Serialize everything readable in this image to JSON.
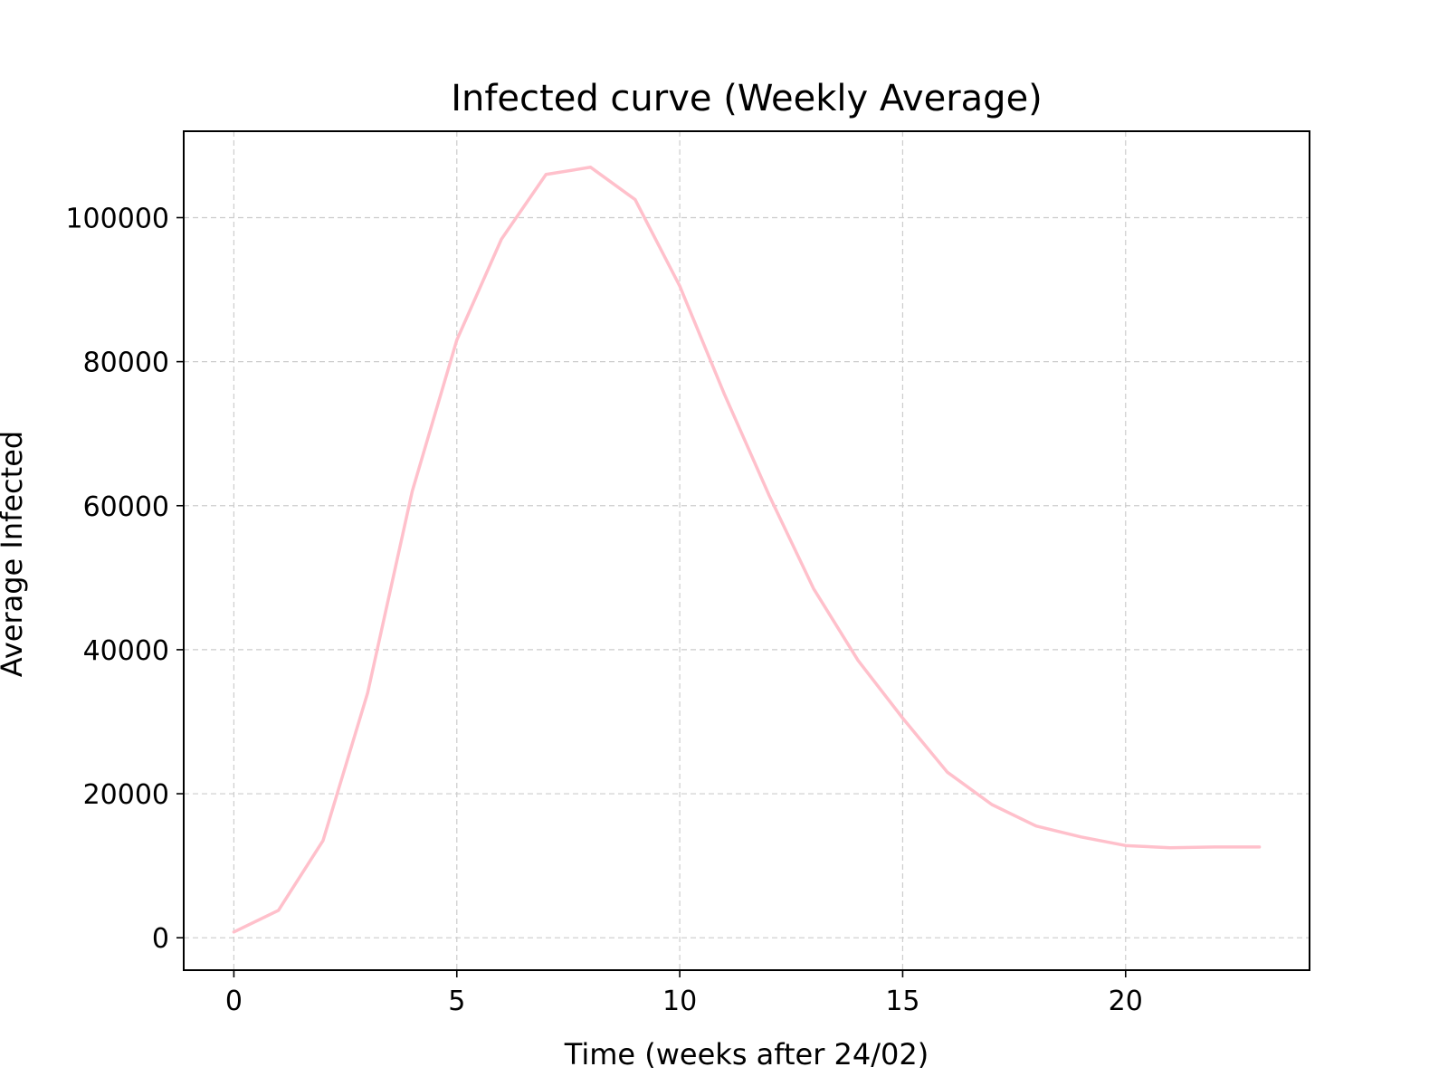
{
  "chart_data": {
    "type": "line",
    "title": "Infected curve (Weekly Average)",
    "xlabel": "Time (weeks after 24/02)",
    "ylabel": "Average Infected",
    "xlim": [
      -1.125,
      24.125
    ],
    "ylim": [
      -4500,
      112000
    ],
    "xticks": [
      0,
      5,
      10,
      15,
      20
    ],
    "yticks": [
      0,
      20000,
      40000,
      60000,
      80000,
      100000
    ],
    "grid": true,
    "series": [
      {
        "color": "#ffc0cb",
        "x": [
          0,
          1,
          2,
          3,
          4,
          5,
          6,
          7,
          8,
          9,
          10,
          11,
          12,
          13,
          14,
          15,
          16,
          17,
          18,
          19,
          20,
          21,
          22,
          23
        ],
        "y": [
          800,
          3800,
          13500,
          34000,
          62000,
          83000,
          97000,
          106000,
          107000,
          102500,
          90500,
          75500,
          61500,
          48500,
          38500,
          30500,
          23000,
          18500,
          15500,
          14000,
          12800,
          12500,
          12600,
          12600
        ]
      }
    ]
  }
}
